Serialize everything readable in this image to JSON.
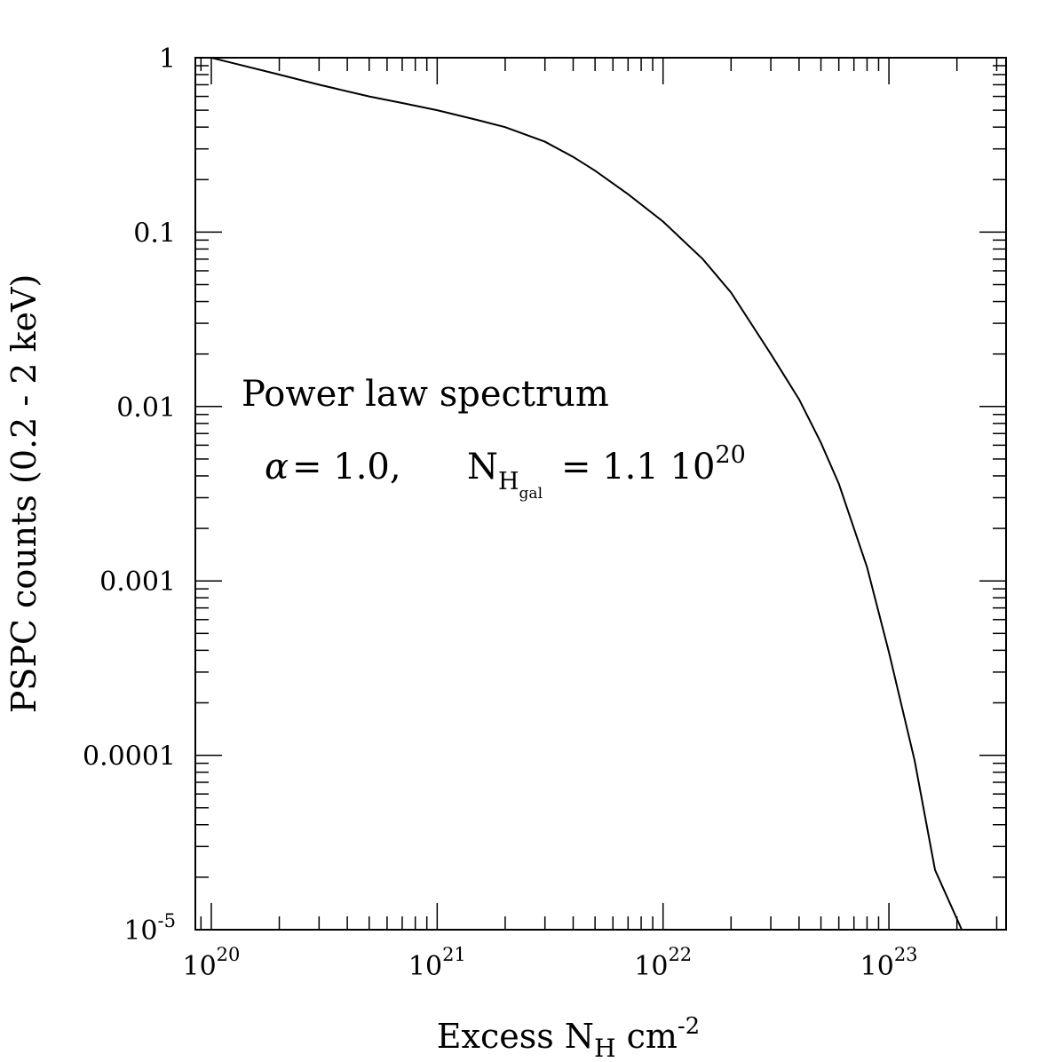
{
  "chart_data": {
    "type": "line",
    "xscale": "log",
    "yscale": "log",
    "xlim": [
      8.5e+19,
      3.3e+23
    ],
    "ylim": [
      1e-05,
      1
    ],
    "grid": false,
    "xlabel": {
      "main": "Excess N",
      "sub": "H",
      "unit": " cm",
      "sup": "-2"
    },
    "ylabel": "PSPC counts (0.2 - 2 keV)",
    "x_ticks": [
      {
        "value": 1e+20,
        "base": "10",
        "exp": "20"
      },
      {
        "value": 1e+21,
        "base": "10",
        "exp": "21"
      },
      {
        "value": 1e+22,
        "base": "10",
        "exp": "22"
      },
      {
        "value": 1e+23,
        "base": "10",
        "exp": "23"
      }
    ],
    "y_ticks": [
      {
        "value": 1,
        "label": "1"
      },
      {
        "value": 0.1,
        "label": "0.1"
      },
      {
        "value": 0.01,
        "label": "0.01"
      },
      {
        "value": 0.001,
        "label": "0.001"
      },
      {
        "value": 0.0001,
        "label": "0.0001"
      },
      {
        "value": 1e-05,
        "base": "10",
        "exp": "-5"
      }
    ],
    "annotations": {
      "line1": "Power law spectrum",
      "alpha_symbol": "α",
      "alpha_text": "= 1.0,",
      "nh_main": "N",
      "nh_sub": "H",
      "nh_subsub": "gal",
      "nh_value": "= 1.1 10",
      "nh_exp": "20"
    },
    "series": [
      {
        "x": [
          1e+20,
          2e+20,
          3e+20,
          5e+20,
          7e+20,
          1e+21,
          1.5e+21,
          2e+21,
          3e+21,
          4e+21,
          5e+21,
          7e+21,
          1e+22,
          1.5e+22,
          2e+22,
          3e+22,
          4e+22,
          5e+22,
          6e+22,
          8e+22,
          1e+23,
          1.3e+23,
          1.6e+23,
          2.1e+23
        ],
        "y": [
          1.0,
          0.8,
          0.7,
          0.6,
          0.55,
          0.5,
          0.44,
          0.4,
          0.33,
          0.27,
          0.225,
          0.165,
          0.115,
          0.07,
          0.045,
          0.02,
          0.011,
          0.0062,
          0.0036,
          0.0012,
          0.00039,
          9.3e-05,
          2.2e-05,
          1e-05
        ]
      }
    ]
  }
}
